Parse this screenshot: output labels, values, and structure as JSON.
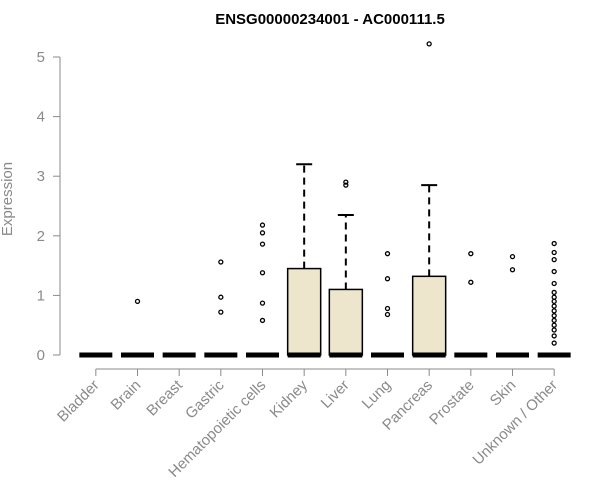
{
  "chart_data": {
    "type": "box",
    "title": "ENSG00000234001 - AC000111.5",
    "ylabel": "Expression",
    "xlabel": "",
    "ylim": [
      0,
      5.3
    ],
    "yticks": [
      0,
      1,
      2,
      3,
      4,
      5
    ],
    "colors": {
      "box_fill": "#ede6cc",
      "box_stroke": "#000000",
      "axis": "#8a8a8a"
    },
    "categories": [
      "Bladder",
      "Brain",
      "Breast",
      "Gastric",
      "Hematopoietic cells",
      "Kidney",
      "Liver",
      "Lung",
      "Pancreas",
      "Prostate",
      "Skin",
      "Unknown / Other"
    ],
    "boxes": [
      {
        "q1": 0,
        "median": 0,
        "q3": 0,
        "whisker_low": 0,
        "whisker_high": 0,
        "outliers": []
      },
      {
        "q1": 0,
        "median": 0,
        "q3": 0,
        "whisker_low": 0,
        "whisker_high": 0,
        "outliers": [
          0.9
        ]
      },
      {
        "q1": 0,
        "median": 0,
        "q3": 0,
        "whisker_low": 0,
        "whisker_high": 0,
        "outliers": []
      },
      {
        "q1": 0,
        "median": 0,
        "q3": 0,
        "whisker_low": 0,
        "whisker_high": 0,
        "outliers": [
          0.72,
          0.97,
          1.56
        ]
      },
      {
        "q1": 0,
        "median": 0,
        "q3": 0,
        "whisker_low": 0,
        "whisker_high": 0,
        "outliers": [
          0.58,
          0.87,
          1.38,
          1.86,
          2.05,
          2.18
        ]
      },
      {
        "q1": 0,
        "median": 0,
        "q3": 1.45,
        "whisker_low": 0,
        "whisker_high": 3.2,
        "outliers": []
      },
      {
        "q1": 0,
        "median": 0,
        "q3": 1.1,
        "whisker_low": 0,
        "whisker_high": 2.35,
        "outliers": [
          2.85,
          2.9
        ]
      },
      {
        "q1": 0,
        "median": 0,
        "q3": 0,
        "whisker_low": 0,
        "whisker_high": 0,
        "outliers": [
          0.68,
          0.78,
          1.28,
          1.7
        ]
      },
      {
        "q1": 0,
        "median": 0,
        "q3": 1.32,
        "whisker_low": 0,
        "whisker_high": 2.85,
        "outliers": [
          5.22
        ]
      },
      {
        "q1": 0,
        "median": 0,
        "q3": 0,
        "whisker_low": 0,
        "whisker_high": 0,
        "outliers": [
          1.22,
          1.7
        ]
      },
      {
        "q1": 0,
        "median": 0,
        "q3": 0,
        "whisker_low": 0,
        "whisker_high": 0,
        "outliers": [
          1.43,
          1.65
        ]
      },
      {
        "q1": 0,
        "median": 0,
        "q3": 0,
        "whisker_low": 0,
        "whisker_high": 0,
        "outliers": [
          0.2,
          0.32,
          0.42,
          0.5,
          0.58,
          0.66,
          0.74,
          0.82,
          0.9,
          0.97,
          1.05,
          1.2,
          1.4,
          1.6,
          1.72,
          1.87
        ]
      }
    ]
  }
}
